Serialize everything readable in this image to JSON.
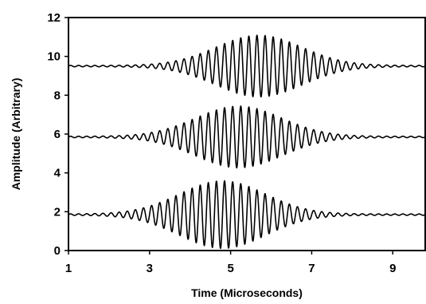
{
  "chart_data": {
    "type": "line",
    "title": "",
    "xlabel": "Time (Microseconds)",
    "ylabel": "Amplitude (Arbitrary)",
    "xlim": [
      1,
      9.8
    ],
    "ylim": [
      0,
      12
    ],
    "x_ticks": [
      "1",
      "3",
      "5",
      "7",
      "9"
    ],
    "y_ticks": [
      "0",
      "2",
      "4",
      "6",
      "8",
      "10",
      "12"
    ],
    "grid": false,
    "legend": "none",
    "series": [
      {
        "baseline": 9.5,
        "peak_amplitude": 1.55,
        "center_time": 5.7,
        "envelope_width": 1.5,
        "frequency_per_microsecond": 5.0
      },
      {
        "baseline": 5.85,
        "peak_amplitude": 1.55,
        "center_time": 5.2,
        "envelope_width": 1.5,
        "frequency_per_microsecond": 5.0
      },
      {
        "baseline": 1.85,
        "peak_amplitude": 1.7,
        "center_time": 4.8,
        "envelope_width": 1.5,
        "frequency_per_microsecond": 5.0
      }
    ],
    "line_color": "#000000"
  }
}
